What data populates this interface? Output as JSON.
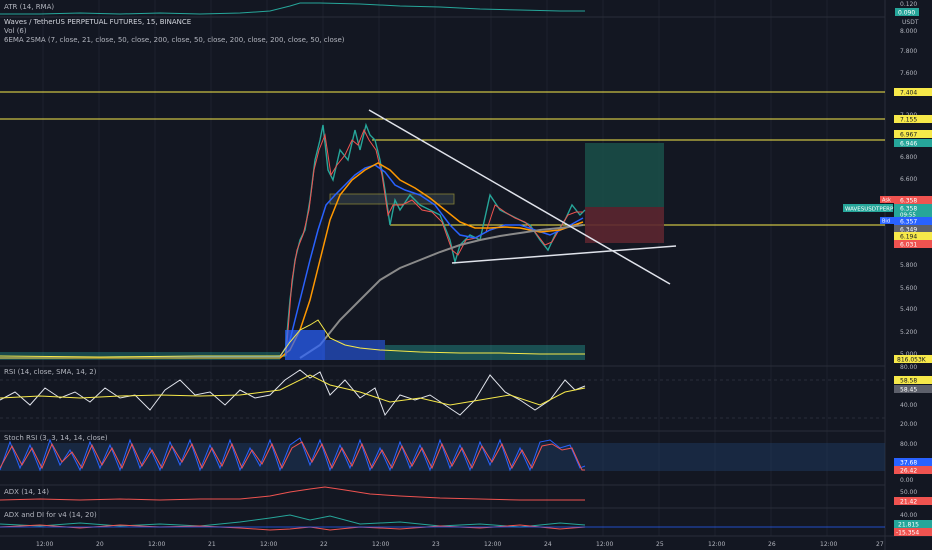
{
  "atr_label": "ATR (14, RMA)",
  "symbol_title": "Waves / TetherUS PERPETUAL FUTURES, 15, BINANCE",
  "vol_label": "Vol (6)",
  "ema_sma_label": "6EMA 2SMA (7, close, 21, close, 50, close, 200, close, 50, close, 200, close, 200, close, 50, close)",
  "rsi_label": "RSI (14, close, SMA, 14, 2)",
  "stoch_label": "Stoch RSI (3, 3, 14, 14, close)",
  "adx_label": "ADX (14, 14)",
  "adx_di_label": "ADX and DI for v4 (14, 20)",
  "currency": "USDT",
  "atr_value": "0.090",
  "atr_scale": [
    "0.120"
  ],
  "price_ticks": [
    "8.000",
    "7.800",
    "7.600",
    "7.400",
    "7.200",
    "7.000",
    "6.800",
    "6.600",
    "6.400",
    "6.200",
    "6.000",
    "5.800",
    "5.600",
    "5.400",
    "5.200",
    "5.000"
  ],
  "price_badges": {
    "level_7404": "7.404",
    "level_7155": "7.155",
    "level_6967": "6.967",
    "level_6946": "6.946",
    "ask_label": "Ask",
    "ask": "6.358",
    "symbol_tag": "WAVESUSDTPERP",
    "last": "6.358",
    "countdown": "09:55",
    "bid_label": "Bid",
    "bid": "6.357",
    "level_6349": "6.349",
    "level_6194": "6.194",
    "level_6031": "6.031",
    "volume": "816.053K"
  },
  "rsi_ticks": [
    "80.00",
    "60.00",
    "40.00",
    "20.00"
  ],
  "rsi_values": [
    "58.58",
    "58.45"
  ],
  "stoch_ticks": [
    "80.00",
    "40.00",
    "0.00"
  ],
  "stoch_values": [
    "37.68",
    "26.42"
  ],
  "adx_ticks": [
    "50.00",
    "0.00"
  ],
  "adx_value": "21.42",
  "adx_di_ticks": [
    "40.00",
    "0.00"
  ],
  "adx_di_values": [
    "21.815",
    "-15.354"
  ],
  "time_labels": [
    "12:00",
    "20",
    "12:00",
    "21",
    "12:00",
    "22",
    "12:00",
    "23",
    "12:00",
    "24",
    "12:00",
    "25",
    "12:00",
    "26",
    "12:00",
    "27"
  ],
  "colors": {
    "background": "#131722",
    "yellow": "#f7e94a",
    "green_zone": "#1a4d47",
    "red_zone": "#5c2630",
    "teal": "#26a69a",
    "red": "#ef5350",
    "ema_blue": "#2962ff",
    "ema_orange": "#ff9800",
    "sma_grey": "#888888",
    "stoch_band": "#1e3a5f"
  }
}
